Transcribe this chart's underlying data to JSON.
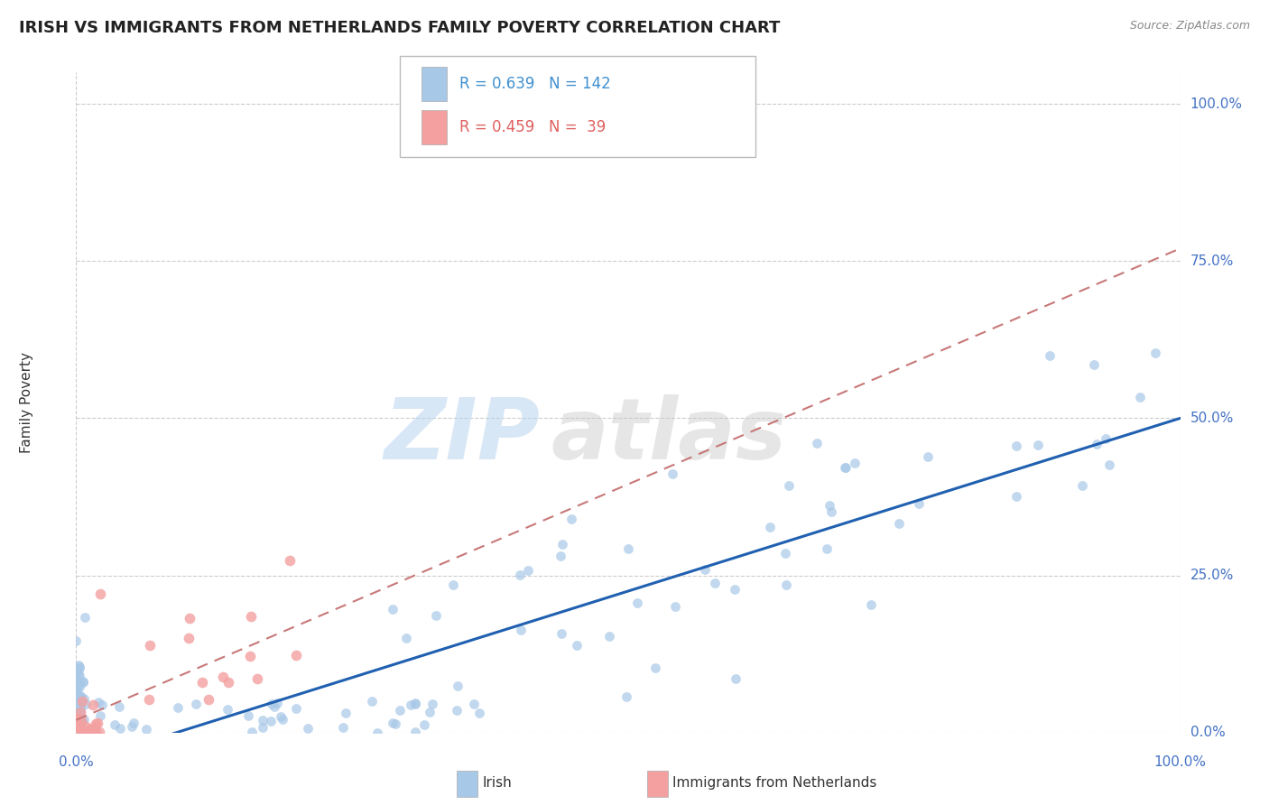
{
  "title": "IRISH VS IMMIGRANTS FROM NETHERLANDS FAMILY POVERTY CORRELATION CHART",
  "source": "Source: ZipAtlas.com",
  "ylabel": "Family Poverty",
  "watermark_line1": "ZIP",
  "watermark_line2": "atlas",
  "xlim": [
    0.0,
    1.0
  ],
  "ylim": [
    0.0,
    1.05
  ],
  "ytick_values": [
    0.0,
    0.25,
    0.5,
    0.75,
    1.0
  ],
  "ytick_labels": [
    "0.0%",
    "25.0%",
    "50.0%",
    "75.0%",
    "100.0%"
  ],
  "xtick_values": [
    0.0,
    1.0
  ],
  "xtick_labels": [
    "0.0%",
    "100.0%"
  ],
  "irish_color": "#a8c8e8",
  "netherlands_color": "#f4a0a0",
  "irish_line_color": "#2060b0",
  "netherlands_line_color": "#c87878",
  "legend_r_irish": "0.639",
  "legend_n_irish": "142",
  "legend_r_netherlands": "0.459",
  "legend_n_netherlands": "39",
  "legend_color_irish": "#4090d0",
  "legend_color_netherlands": "#e06060",
  "background_color": "#ffffff",
  "grid_color": "#cccccc",
  "title_fontsize": 13,
  "source_fontsize": 9,
  "tick_color": "#4472c4",
  "ylabel_color": "#333333",
  "irish_line_slope": 0.55,
  "irish_line_intercept": -0.05,
  "nl_line_slope": 0.75,
  "nl_line_intercept": 0.02
}
